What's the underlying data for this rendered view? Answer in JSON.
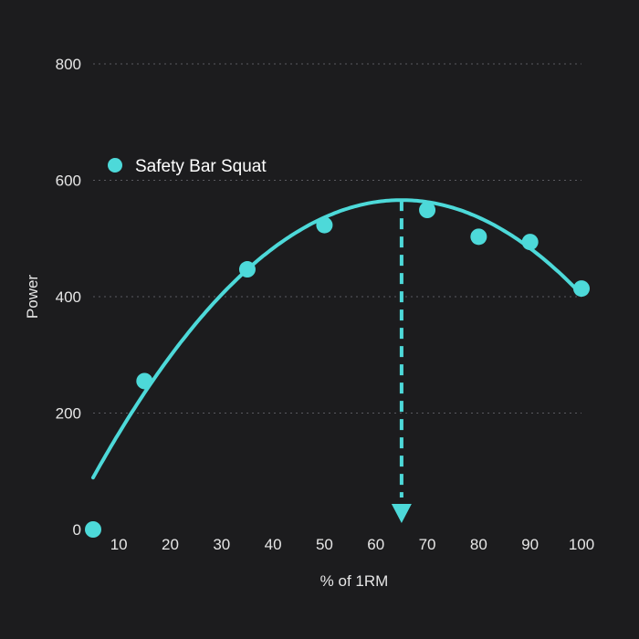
{
  "chart_data": {
    "type": "scatter",
    "title": "",
    "xlabel": "% of 1RM",
    "ylabel": "Power",
    "xlim": [
      5,
      100
    ],
    "ylim": [
      0,
      800
    ],
    "x_ticks": [
      10,
      20,
      30,
      40,
      50,
      60,
      70,
      80,
      90,
      100
    ],
    "y_ticks": [
      0,
      200,
      400,
      600,
      800
    ],
    "grid": "horizontal dashed",
    "legend_position": "top-left",
    "colors": {
      "series": "#4dd9d9",
      "background": "#1c1c1e",
      "text": "#e6e6e6"
    },
    "series": [
      {
        "name": "Safety Bar Squat",
        "x": [
          5,
          15,
          35,
          50,
          70,
          80,
          90,
          100
        ],
        "y": [
          0,
          255,
          447,
          523,
          549,
          503,
          494,
          414
        ]
      }
    ],
    "fit_curve": {
      "type": "quadratic",
      "x_range": [
        5,
        100
      ],
      "start_y": 47,
      "peak": {
        "x": 65,
        "y": 566
      },
      "end_y": 418
    },
    "optimum_marker": {
      "x": 65,
      "style": "dashed arrow down"
    }
  }
}
